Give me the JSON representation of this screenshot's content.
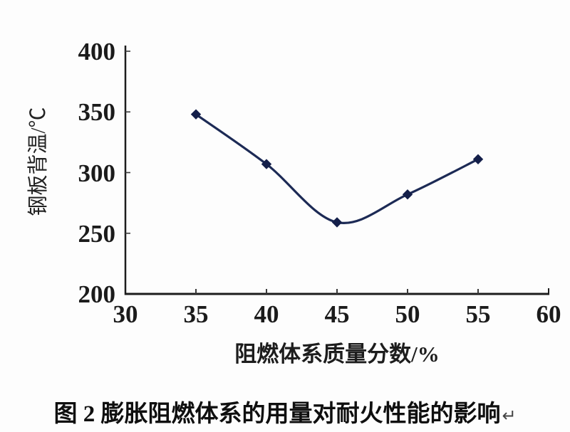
{
  "figure": {
    "caption": "图 2 膨胀阻燃体系的用量对耐火性能的影响",
    "caption_return_mark": "↵"
  },
  "chart_data": {
    "type": "line",
    "title": "",
    "xlabel": "阻燃体系质量分数/%",
    "ylabel": "钢板背温/℃",
    "x": [
      35,
      40,
      45,
      50,
      55
    ],
    "series": [
      {
        "name": "钢板背温",
        "values": [
          348,
          307,
          259,
          282,
          311
        ]
      }
    ],
    "xlim": [
      30,
      60
    ],
    "ylim": [
      200,
      400
    ],
    "x_ticks": [
      30,
      35,
      40,
      45,
      50,
      55,
      60
    ],
    "y_ticks": [
      400,
      350,
      300,
      250,
      200
    ],
    "grid": false,
    "legend": "none",
    "marker": "diamond",
    "line_color": "#1c2a55",
    "marker_color": "#141f4a",
    "axis_color": "#1c1c1c",
    "tick_color": "#3a3a3a"
  }
}
